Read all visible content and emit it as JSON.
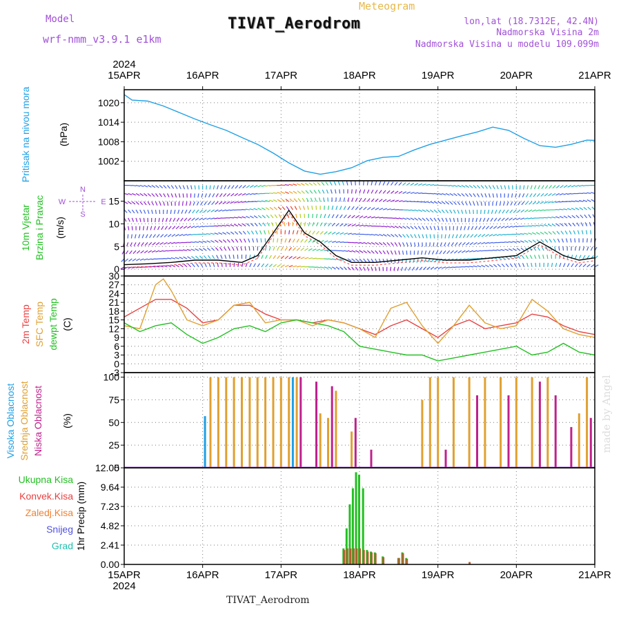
{
  "header": {
    "meteogram": "Meteogram",
    "title": "TIVAT_Aerodrom",
    "model_label": "Model",
    "model_name": "wrf-nmm_v3.9.1 e1km",
    "lonlat": "lon,lat (18.7312E, 42.4N)",
    "elev_station": "Nadmorska Visina 2m",
    "elev_model": "Nadmorska Visina u modelu 109.099m",
    "bottom_label": "TIVAT_Aerodrom",
    "credit": "made by Angel"
  },
  "colors": {
    "pressure": "#1ea0e6",
    "temp2m": "#e84040",
    "sfctemp": "#e0a030",
    "dewpt": "#22c022",
    "cloud_high": "#1ea0e6",
    "cloud_mid": "#e0a030",
    "cloud_low": "#c0208c",
    "rain_total": "#22c022",
    "rain_conv": "#b06030"
  },
  "chart_data": [
    {
      "type": "line",
      "title": "Pritisak na nivou mora",
      "ylabel": "(hPa)",
      "x_ticks": [
        "15APR",
        "16APR",
        "17APR",
        "18APR",
        "19APR",
        "20APR",
        "21APR"
      ],
      "year": "2024",
      "ylim": [
        996,
        1024
      ],
      "yticks": [
        1002,
        1008,
        1014,
        1020
      ],
      "grid": true,
      "series": [
        {
          "name": "Pritisak",
          "x_days": [
            0,
            0.1,
            0.3,
            0.5,
            0.7,
            0.9,
            1.1,
            1.3,
            1.5,
            1.7,
            1.9,
            2.1,
            2.3,
            2.5,
            2.7,
            2.9,
            3.1,
            3.3,
            3.5,
            3.7,
            3.9,
            4.1,
            4.3,
            4.5,
            4.7,
            4.9,
            5.1,
            5.3,
            5.5,
            5.7,
            5.9,
            6.0
          ],
          "values": [
            1022.5,
            1020.8,
            1020.5,
            1019.0,
            1017.0,
            1015.0,
            1013.2,
            1011.5,
            1009.3,
            1007.2,
            1004.5,
            1001.5,
            999.0,
            998.0,
            998.8,
            1000.0,
            1002.2,
            1003.2,
            1003.5,
            1005.5,
            1007.2,
            1008.5,
            1009.8,
            1011.0,
            1012.5,
            1011.5,
            1009.0,
            1006.8,
            1006.3,
            1007.2,
            1008.5,
            1008.4
          ]
        }
      ]
    },
    {
      "type": "line",
      "title": "10m Vjetar Brzina i Pravac",
      "ylabel": "(m/s)",
      "ylim": [
        -1.5,
        19.5
      ],
      "yticks": [
        0,
        5,
        10,
        15
      ],
      "compass": "N S E W",
      "series": [
        {
          "name": "Brzina",
          "x_days": [
            0,
            0.3,
            0.6,
            0.9,
            1.2,
            1.5,
            1.7,
            1.9,
            2.1,
            2.3,
            2.5,
            2.7,
            2.9,
            3.2,
            3.5,
            3.8,
            4.1,
            4.4,
            4.7,
            5.0,
            5.3,
            5.6,
            5.8,
            6.0
          ],
          "values": [
            1.0,
            1.2,
            1.5,
            2.0,
            2.0,
            1.5,
            3.0,
            8.0,
            13.0,
            8.0,
            6.0,
            3.0,
            1.5,
            1.5,
            2.0,
            2.5,
            2.0,
            2.0,
            2.5,
            3.0,
            6.0,
            3.0,
            2.0,
            2.5
          ]
        }
      ]
    },
    {
      "type": "line",
      "title": "2m Temp / SFC Temp / dewpt Temp",
      "ylabel": "(C)",
      "ylim": [
        -3,
        30
      ],
      "yticks": [
        -3,
        0,
        3,
        6,
        9,
        12,
        15,
        18,
        21,
        24,
        27,
        30
      ],
      "series": [
        {
          "name": "2m Temp",
          "x_days": [
            0,
            0.2,
            0.4,
            0.6,
            0.8,
            1.0,
            1.2,
            1.4,
            1.6,
            1.8,
            2.0,
            2.2,
            2.4,
            2.6,
            2.8,
            3.0,
            3.2,
            3.4,
            3.6,
            3.8,
            4.0,
            4.2,
            4.4,
            4.6,
            4.8,
            5.0,
            5.2,
            5.4,
            5.6,
            5.8,
            6.0
          ],
          "values": [
            16,
            19,
            22,
            22,
            19,
            14,
            15,
            20,
            20,
            17,
            15,
            15,
            14,
            15,
            14,
            12,
            10,
            13,
            15,
            12,
            9,
            13,
            15,
            12,
            13,
            14,
            17,
            16,
            13,
            11,
            10
          ]
        },
        {
          "name": "SFC Temp",
          "x_days": [
            0,
            0.2,
            0.4,
            0.5,
            0.6,
            0.8,
            1.0,
            1.2,
            1.4,
            1.6,
            1.8,
            2.0,
            2.2,
            2.4,
            2.6,
            2.8,
            3.0,
            3.2,
            3.4,
            3.6,
            3.8,
            4.0,
            4.2,
            4.4,
            4.6,
            4.8,
            5.0,
            5.2,
            5.4,
            5.6,
            5.8,
            6.0
          ],
          "values": [
            13,
            12,
            27,
            29,
            25,
            15,
            13,
            15,
            20,
            21,
            14,
            15,
            15,
            13,
            15,
            14,
            12,
            9,
            19,
            21,
            13,
            7,
            13,
            20,
            14,
            12,
            13,
            22,
            18,
            12,
            10,
            9
          ]
        },
        {
          "name": "dewpt Temp",
          "x_days": [
            0,
            0.2,
            0.4,
            0.6,
            0.8,
            1.0,
            1.2,
            1.4,
            1.6,
            1.8,
            2.0,
            2.2,
            2.4,
            2.6,
            2.8,
            3.0,
            3.2,
            3.4,
            3.6,
            3.8,
            4.0,
            4.2,
            4.4,
            4.6,
            4.8,
            5.0,
            5.2,
            5.4,
            5.6,
            5.8,
            6.0
          ],
          "values": [
            14,
            11,
            13,
            14,
            10,
            7,
            9,
            12,
            13,
            11,
            14,
            15,
            14,
            13,
            11,
            6,
            5,
            4,
            3,
            3,
            1,
            2,
            3,
            4,
            5,
            6,
            3,
            4,
            7,
            4,
            3
          ]
        }
      ]
    },
    {
      "type": "bar",
      "title": "Visoka Oblacnost / Srednja Oblacnost / Niska Oblacnost",
      "ylabel": "(%)",
      "ylim": [
        0,
        105
      ],
      "yticks": [
        0,
        25,
        50,
        75,
        100
      ],
      "series": [
        {
          "name": "Visoka Oblacnost",
          "x_days": [
            1.03,
            1.9,
            2.15
          ],
          "values": [
            57,
            100,
            100
          ]
        },
        {
          "name": "Srednja Oblacnost",
          "x_days": [
            1.1,
            1.2,
            1.3,
            1.4,
            1.5,
            1.6,
            1.7,
            1.8,
            1.9,
            2.0,
            2.1,
            2.2,
            2.5,
            2.6,
            2.7,
            2.9,
            3.8,
            3.9,
            4.0,
            4.2,
            4.4,
            4.6,
            4.8,
            5.0,
            5.2,
            5.4,
            5.8,
            5.9
          ],
          "values": [
            100,
            100,
            100,
            100,
            100,
            100,
            100,
            100,
            100,
            100,
            100,
            100,
            60,
            55,
            85,
            40,
            75,
            100,
            100,
            100,
            100,
            100,
            100,
            100,
            100,
            100,
            60,
            100
          ]
        },
        {
          "name": "Niska Oblacnost",
          "x_days": [
            2.25,
            2.45,
            2.65,
            2.95,
            3.15,
            4.1,
            4.5,
            4.9,
            5.3,
            5.5,
            5.7,
            5.95
          ],
          "values": [
            100,
            95,
            90,
            55,
            20,
            20,
            80,
            80,
            95,
            80,
            45,
            55
          ]
        }
      ]
    },
    {
      "type": "bar",
      "title": "1hr Precip",
      "ylabel": "1hr Precip (mm)",
      "ylim": [
        0,
        12.05
      ],
      "yticks": [
        0,
        2.41,
        4.82,
        7.23,
        9.64,
        12.05
      ],
      "legend": [
        "Ukupna Kisa",
        "Konvek.Kisa",
        "Zaledj.Kisa",
        "Snijeg",
        "Grad"
      ],
      "series": [
        {
          "name": "Ukupna Kisa",
          "x_days": [
            2.8,
            2.84,
            2.88,
            2.92,
            2.96,
            3.0,
            3.05,
            3.1,
            3.15,
            3.2,
            3.3,
            3.5,
            3.55,
            3.6
          ],
          "values": [
            2.0,
            4.5,
            7.5,
            9.5,
            11.5,
            11.2,
            9.5,
            1.8,
            1.6,
            1.5,
            1.0,
            0.8,
            1.5,
            0.8
          ]
        },
        {
          "name": "Konvek.Kisa",
          "x_days": [
            2.8,
            2.84,
            2.88,
            2.92,
            2.96,
            3.0,
            3.05,
            3.1,
            3.15,
            3.2,
            3.3,
            3.5,
            3.55,
            3.6,
            4.4
          ],
          "values": [
            1.8,
            2.0,
            2.0,
            2.0,
            2.0,
            2.0,
            1.8,
            1.6,
            1.5,
            1.4,
            0.9,
            0.8,
            1.4,
            0.7,
            0.3
          ]
        }
      ]
    }
  ]
}
